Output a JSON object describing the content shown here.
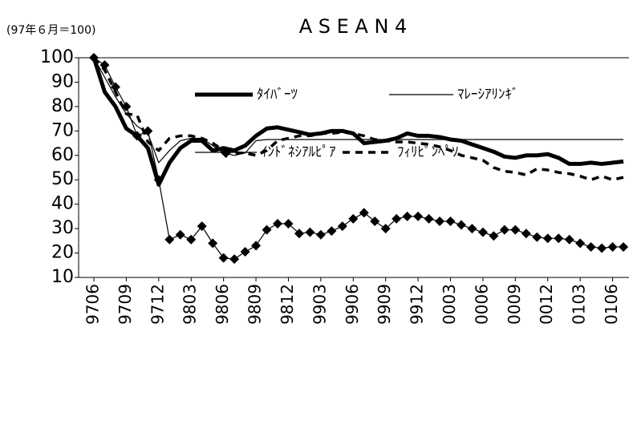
{
  "chart_data": {
    "type": "line",
    "title": "A S E A N 4",
    "subtitle": "(97年６月＝100)",
    "categories": [
      "9706",
      null,
      null,
      "9709",
      null,
      null,
      "9712",
      null,
      null,
      "9803",
      null,
      null,
      "9806",
      null,
      null,
      "9809",
      null,
      null,
      "9812",
      null,
      null,
      "9903",
      null,
      null,
      "9906",
      null,
      null,
      "9909",
      null,
      null,
      "9912",
      null,
      null,
      "0003",
      null,
      null,
      "0006",
      null,
      null,
      "0009",
      null,
      null,
      "0012",
      null,
      null,
      "0103",
      null,
      null,
      "0106",
      null
    ],
    "series": [
      {
        "name": "ﾀｲﾊﾞｰﾂ",
        "color": "#000000",
        "style": "thick",
        "values": [
          100,
          86,
          80,
          71,
          68,
          63,
          48,
          57,
          63,
          66,
          66,
          62,
          63,
          62,
          64,
          68,
          71,
          71.5,
          70.5,
          69.5,
          68.5,
          69,
          70,
          70,
          69,
          65,
          65.5,
          66,
          67,
          69,
          68,
          68,
          67.5,
          66.5,
          66,
          64.5,
          63,
          61.5,
          59.5,
          59,
          60,
          60,
          60.5,
          59,
          56.5,
          56.5,
          57,
          56.5,
          57,
          57.5
        ]
      },
      {
        "name": "ﾏﾚｰｼｱﾘﾝｷﾞ",
        "color": "#000000",
        "style": "thin",
        "values": [
          100,
          92,
          84,
          77,
          72,
          69,
          57,
          62,
          66,
          67,
          67,
          64,
          61,
          60,
          61,
          66,
          66.5,
          66.5,
          66.5,
          66.5,
          66.5,
          66.5,
          66.5,
          66.5,
          66.5,
          66.5,
          66.5,
          66.5,
          66.5,
          66.5,
          66.5,
          66.5,
          66.5,
          66.5,
          66.5,
          66.5,
          66.5,
          66.5,
          66.5,
          66.5,
          66.5,
          66.5,
          66.5,
          66.5,
          66.5,
          66.5,
          66.5,
          66.5,
          66.5,
          66.5
        ]
      },
      {
        "name": "ｲﾝﾄﾞﾈｼｱﾙﾋﾟｱ",
        "color": "#000000",
        "style": "diamond",
        "values": [
          100,
          97,
          88,
          80,
          68,
          70,
          50,
          25.5,
          27.5,
          25.5,
          31,
          24,
          18,
          17.5,
          20.5,
          23,
          29.5,
          32,
          32,
          28,
          28.5,
          27.5,
          29,
          31,
          34,
          36.5,
          33,
          30,
          34,
          35,
          35,
          34,
          33,
          33,
          31.5,
          30,
          28.5,
          27,
          29.5,
          29.5,
          28,
          26.5,
          26,
          26,
          25.5,
          24,
          22.5,
          22,
          22.5,
          22.5
        ]
      },
      {
        "name": "ﾌｨﾘﾋﾟﾝﾍﾟｿ",
        "color": "#000000",
        "style": "dashed",
        "values": [
          100,
          95,
          86,
          77,
          76.5,
          65.5,
          62,
          67,
          68,
          68,
          67,
          65,
          62,
          61,
          61,
          60,
          62,
          66,
          67,
          68,
          68,
          69,
          69,
          69.5,
          69,
          68,
          66.5,
          66,
          65.5,
          65.5,
          65,
          64.5,
          63.5,
          62,
          60,
          59,
          58,
          55,
          53.5,
          53,
          52,
          54.5,
          54,
          53,
          52.5,
          51.5,
          50,
          51.5,
          50,
          51
        ]
      }
    ],
    "ylim": [
      10,
      100
    ],
    "yticks": [
      10,
      20,
      30,
      40,
      50,
      60,
      70,
      80,
      90,
      100
    ]
  }
}
